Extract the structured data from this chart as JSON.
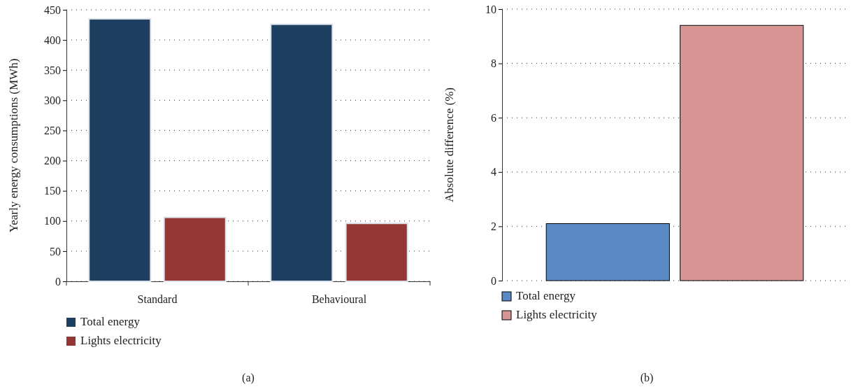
{
  "chart_data": [
    {
      "type": "bar",
      "ylabel": "Yearly energy consumptions (MWh)",
      "categories": [
        "Standard",
        "Behavioural"
      ],
      "series": [
        {
          "name": "Total energy",
          "color": "#1f3f60",
          "values": [
            435,
            426
          ]
        },
        {
          "name": "Lights electricity",
          "color": "#943634",
          "values": [
            106,
            96
          ]
        }
      ],
      "ylim": [
        0,
        450
      ],
      "yticks": [
        0,
        50,
        100,
        150,
        200,
        250,
        300,
        350,
        400,
        450
      ],
      "grid": "y",
      "legend": "bottom",
      "annotations": [
        "(a)"
      ]
    },
    {
      "type": "bar",
      "ylabel": "Absolute difference (%)",
      "categories": [
        null
      ],
      "series": [
        {
          "name": "Total energy",
          "color": "#5a8ac6",
          "values": [
            2.1
          ]
        },
        {
          "name": "Lights electricity",
          "color": "#d99594",
          "values": [
            9.4
          ]
        }
      ],
      "ylim": [
        0,
        10
      ],
      "yticks": [
        0,
        2,
        4,
        6,
        8,
        10
      ],
      "grid": "y",
      "legend": "bottom",
      "annotations": [
        "(b)"
      ]
    }
  ]
}
